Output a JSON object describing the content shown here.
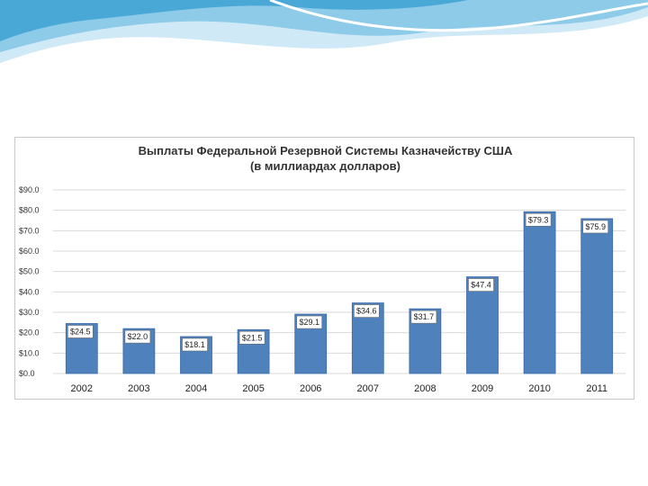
{
  "colors": {
    "bar": "#4f81bd",
    "bar_edge": "#3a6aa6",
    "grid": "#d9d9d9",
    "wave_light": "#bfe4f4",
    "wave_dark": "#5ab3dc"
  },
  "chart_data": {
    "type": "bar",
    "title": "Выплаты Федеральной Резервной Системы Казначейству США",
    "subtitle": "(в миллиардах долларов)",
    "categories": [
      "2002",
      "2003",
      "2004",
      "2005",
      "2006",
      "2007",
      "2008",
      "2009",
      "2010",
      "2011"
    ],
    "values": [
      24.5,
      22.0,
      18.1,
      21.5,
      29.1,
      34.6,
      31.7,
      47.4,
      79.3,
      75.9
    ],
    "data_labels": [
      "$24.5",
      "$22.0",
      "$18.1",
      "$21.5",
      "$29.1",
      "$34.6",
      "$31.7",
      "$47.4",
      "$79.3",
      "$75.9"
    ],
    "y_ticks": [
      0,
      10,
      20,
      30,
      40,
      50,
      60,
      70,
      80,
      90
    ],
    "y_tick_labels": [
      "$0.0",
      "$10.0",
      "$20.0",
      "$30.0",
      "$40.0",
      "$50.0",
      "$60.0",
      "$70.0",
      "$80.0",
      "$90.0"
    ],
    "ylim": [
      0,
      90
    ],
    "xlabel": "",
    "ylabel": "",
    "grid": true
  }
}
